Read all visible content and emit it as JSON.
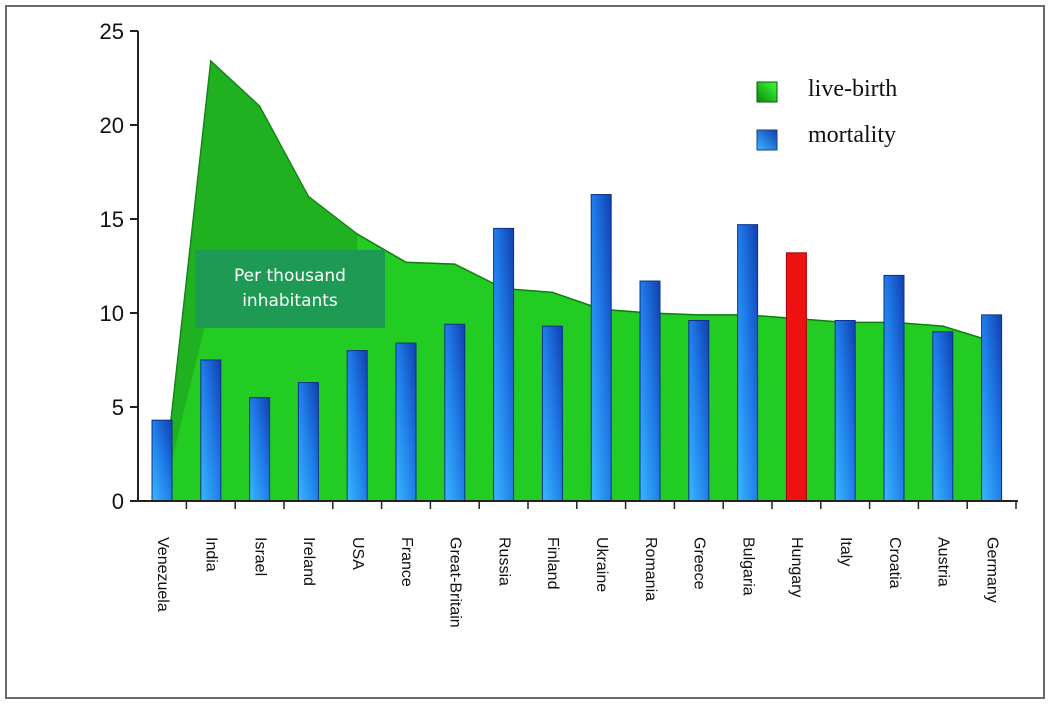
{
  "chart_data": {
    "type": "bar",
    "title": "",
    "xlabel": "",
    "ylabel": "",
    "ylim": [
      0,
      25
    ],
    "yticks": [
      0,
      5,
      10,
      15,
      20,
      25
    ],
    "grid": false,
    "legend_position": "top-right",
    "annotation": [
      "Per thousand",
      "inhabitants"
    ],
    "categories": [
      "Venezuela",
      "India",
      "Israel",
      "Ireland",
      "USA",
      "France",
      "Great-Britain",
      "Russia",
      "Finland",
      "Ukraine",
      "Romania",
      "Greece",
      "Bulgaria",
      "Hungary",
      "Italy",
      "Croatia",
      "Austria",
      "Germany"
    ],
    "series": [
      {
        "name": "live-birth",
        "type": "area",
        "color": "#22cc22",
        "values": [
          0,
          23.4,
          21.0,
          16.2,
          14.2,
          12.7,
          12.6,
          11.3,
          11.1,
          10.2,
          10.0,
          9.9,
          9.9,
          9.7,
          9.5,
          9.5,
          9.3,
          8.5
        ]
      },
      {
        "name": "mortality",
        "type": "bar",
        "color": "#1e6fe0",
        "highlight": {
          "category": "Hungary",
          "color": "#ee1111"
        },
        "values": [
          4.3,
          7.5,
          5.5,
          6.3,
          8.0,
          8.4,
          9.4,
          14.5,
          9.3,
          16.3,
          11.7,
          9.6,
          14.7,
          13.2,
          9.6,
          12.0,
          9.0,
          9.9
        ]
      }
    ]
  }
}
